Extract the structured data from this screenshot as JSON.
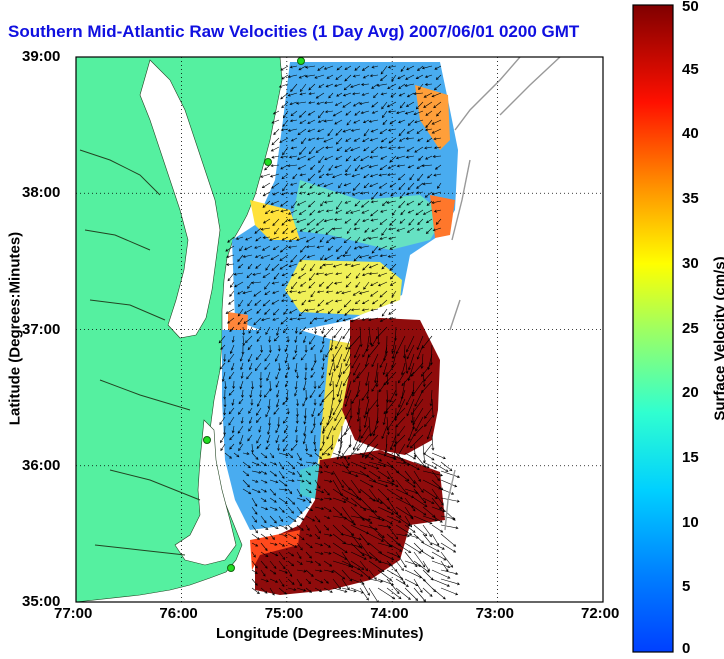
{
  "title": "Southern Mid-Atlantic Raw Velocities (1 Day Avg) 2007/06/01 0200 GMT",
  "map": {
    "xlabel": "Longitude (Degrees:Minutes)",
    "ylabel": "Latitude (Degrees:Minutes)",
    "lon_ticks": [
      "77:00",
      "76:00",
      "75:00",
      "74:00",
      "73:00",
      "72:00"
    ],
    "lat_ticks": [
      "39:00",
      "38:00",
      "37:00",
      "36:00",
      "35:00"
    ],
    "lon_range": [
      -77,
      -72
    ],
    "lat_range": [
      35,
      39
    ],
    "grid": true,
    "land_color": "#55f0a0",
    "water_color": "#ffffff",
    "site_color": "#22dd22"
  },
  "colorbar": {
    "label": "Surface Velocity (cm/s)",
    "ticks": [
      "50",
      "45",
      "40",
      "35",
      "30",
      "25",
      "20",
      "15",
      "10",
      "5",
      "0"
    ],
    "range": [
      0,
      50
    ],
    "colormap": "jet"
  }
}
